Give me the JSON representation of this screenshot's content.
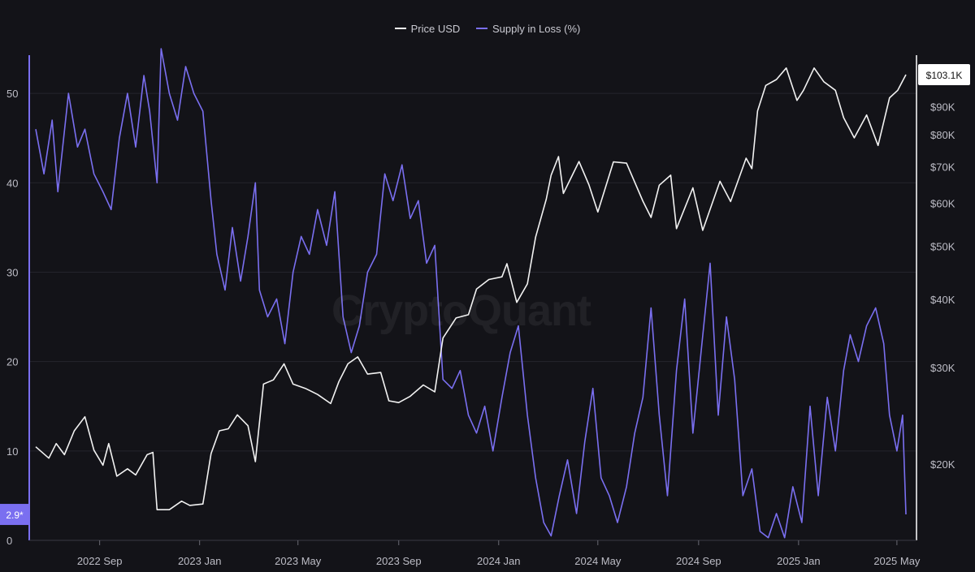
{
  "legend": [
    {
      "label": "Price USD",
      "color": "#ffffff"
    },
    {
      "label": "Supply in Loss (%)",
      "color": "#7a6ff0"
    }
  ],
  "watermark": "CryptoQuant",
  "colors": {
    "background": "#131318",
    "grid": "#24242c",
    "price": "#f2f2f2",
    "supply": "#7a6ff0",
    "price_badge_bg": "#ffffff",
    "price_badge_text": "#111111",
    "supply_badge_bg": "#7a6ff0",
    "supply_badge_text": "#ffffff"
  },
  "chart_data": {
    "type": "line",
    "x_range": [
      "2022-06-15",
      "2025-05-15"
    ],
    "x_ticks": [
      {
        "date": "2022-09-01",
        "label": "2022 Sep"
      },
      {
        "date": "2023-01-01",
        "label": "2023 Jan"
      },
      {
        "date": "2023-05-01",
        "label": "2023 May"
      },
      {
        "date": "2023-09-01",
        "label": "2023 Sep"
      },
      {
        "date": "2024-01-01",
        "label": "2024 Jan"
      },
      {
        "date": "2024-05-01",
        "label": "2024 May"
      },
      {
        "date": "2024-09-01",
        "label": "2024 Sep"
      },
      {
        "date": "2025-01-01",
        "label": "2025 Jan"
      },
      {
        "date": "2025-05-01",
        "label": "2025 May"
      }
    ],
    "left_axis": {
      "series": "Supply in Loss (%)",
      "ylim": [
        0,
        55
      ],
      "ticks": [
        0,
        10,
        20,
        30,
        40,
        50
      ]
    },
    "right_axis": {
      "series": "Price USD",
      "scale": "log",
      "ylim": [
        14500,
        115000
      ],
      "tick_values": [
        20000,
        30000,
        40000,
        50000,
        60000,
        70000,
        80000,
        90000
      ],
      "tick_labels": [
        "$20K",
        "$30K",
        "$40K",
        "$50K",
        "$60K",
        "$70K",
        "$80K",
        "$90K"
      ]
    },
    "current_price_label": "$103.1K",
    "current_supply_label": "2.9*",
    "series": [
      {
        "name": "Price USD",
        "axis": "right",
        "points": [
          [
            "2022-06-15",
            21500
          ],
          [
            "2022-07-01",
            20500
          ],
          [
            "2022-07-10",
            21800
          ],
          [
            "2022-07-20",
            20800
          ],
          [
            "2022-08-01",
            23000
          ],
          [
            "2022-08-14",
            24400
          ],
          [
            "2022-08-25",
            21200
          ],
          [
            "2022-09-05",
            19900
          ],
          [
            "2022-09-12",
            21800
          ],
          [
            "2022-09-22",
            19000
          ],
          [
            "2022-10-05",
            19600
          ],
          [
            "2022-10-15",
            19100
          ],
          [
            "2022-10-29",
            20800
          ],
          [
            "2022-11-05",
            21000
          ],
          [
            "2022-11-10",
            16500
          ],
          [
            "2022-11-25",
            16500
          ],
          [
            "2022-12-10",
            17100
          ],
          [
            "2022-12-20",
            16800
          ],
          [
            "2023-01-05",
            16900
          ],
          [
            "2023-01-15",
            20900
          ],
          [
            "2023-01-25",
            23000
          ],
          [
            "2023-02-05",
            23200
          ],
          [
            "2023-02-16",
            24600
          ],
          [
            "2023-03-01",
            23500
          ],
          [
            "2023-03-10",
            20200
          ],
          [
            "2023-03-20",
            28000
          ],
          [
            "2023-04-01",
            28500
          ],
          [
            "2023-04-14",
            30500
          ],
          [
            "2023-04-25",
            28000
          ],
          [
            "2023-05-10",
            27500
          ],
          [
            "2023-05-25",
            26800
          ],
          [
            "2023-06-10",
            25800
          ],
          [
            "2023-06-20",
            28300
          ],
          [
            "2023-07-01",
            30500
          ],
          [
            "2023-07-13",
            31400
          ],
          [
            "2023-07-25",
            29200
          ],
          [
            "2023-08-10",
            29400
          ],
          [
            "2023-08-20",
            26100
          ],
          [
            "2023-09-01",
            25900
          ],
          [
            "2023-09-15",
            26600
          ],
          [
            "2023-10-01",
            27900
          ],
          [
            "2023-10-15",
            27100
          ],
          [
            "2023-10-25",
            34000
          ],
          [
            "2023-11-10",
            37000
          ],
          [
            "2023-11-25",
            37500
          ],
          [
            "2023-12-05",
            41800
          ],
          [
            "2023-12-20",
            43500
          ],
          [
            "2024-01-05",
            44000
          ],
          [
            "2024-01-11",
            46500
          ],
          [
            "2024-01-23",
            39500
          ],
          [
            "2024-02-05",
            42700
          ],
          [
            "2024-02-15",
            52000
          ],
          [
            "2024-02-28",
            61000
          ],
          [
            "2024-03-05",
            67500
          ],
          [
            "2024-03-14",
            73000
          ],
          [
            "2024-03-20",
            62500
          ],
          [
            "2024-04-08",
            71500
          ],
          [
            "2024-04-20",
            64900
          ],
          [
            "2024-05-01",
            57800
          ],
          [
            "2024-05-20",
            71400
          ],
          [
            "2024-06-05",
            71000
          ],
          [
            "2024-06-25",
            60500
          ],
          [
            "2024-07-05",
            56500
          ],
          [
            "2024-07-15",
            64700
          ],
          [
            "2024-07-29",
            67500
          ],
          [
            "2024-08-05",
            53900
          ],
          [
            "2024-08-25",
            64000
          ],
          [
            "2024-09-06",
            53500
          ],
          [
            "2024-09-27",
            65800
          ],
          [
            "2024-10-10",
            60400
          ],
          [
            "2024-10-29",
            72500
          ],
          [
            "2024-11-05",
            69400
          ],
          [
            "2024-11-12",
            88500
          ],
          [
            "2024-11-22",
            98500
          ],
          [
            "2024-12-05",
            101000
          ],
          [
            "2024-12-17",
            106000
          ],
          [
            "2024-12-30",
            92500
          ],
          [
            "2025-01-07",
            96500
          ],
          [
            "2025-01-20",
            106000
          ],
          [
            "2025-02-01",
            100000
          ],
          [
            "2025-02-15",
            96500
          ],
          [
            "2025-02-25",
            86000
          ],
          [
            "2025-03-10",
            79000
          ],
          [
            "2025-03-25",
            87000
          ],
          [
            "2025-04-08",
            76500
          ],
          [
            "2025-04-22",
            93500
          ],
          [
            "2025-05-02",
            96500
          ],
          [
            "2025-05-12",
            103100
          ]
        ]
      },
      {
        "name": "Supply in Loss (%)",
        "axis": "left",
        "points": [
          [
            "2022-06-15",
            46
          ],
          [
            "2022-06-25",
            41
          ],
          [
            "2022-07-05",
            47
          ],
          [
            "2022-07-12",
            39
          ],
          [
            "2022-07-25",
            50
          ],
          [
            "2022-08-05",
            44
          ],
          [
            "2022-08-14",
            46
          ],
          [
            "2022-08-25",
            41
          ],
          [
            "2022-09-05",
            39
          ],
          [
            "2022-09-15",
            37
          ],
          [
            "2022-09-25",
            45
          ],
          [
            "2022-10-05",
            50
          ],
          [
            "2022-10-15",
            44
          ],
          [
            "2022-10-25",
            52
          ],
          [
            "2022-11-01",
            48
          ],
          [
            "2022-11-10",
            40
          ],
          [
            "2022-11-15",
            55
          ],
          [
            "2022-11-25",
            50
          ],
          [
            "2022-12-05",
            47
          ],
          [
            "2022-12-15",
            53
          ],
          [
            "2022-12-25",
            50
          ],
          [
            "2023-01-05",
            48
          ],
          [
            "2023-01-15",
            38
          ],
          [
            "2023-01-22",
            32
          ],
          [
            "2023-02-01",
            28
          ],
          [
            "2023-02-10",
            35
          ],
          [
            "2023-02-20",
            29
          ],
          [
            "2023-03-01",
            34
          ],
          [
            "2023-03-10",
            40
          ],
          [
            "2023-03-15",
            28
          ],
          [
            "2023-03-25",
            25
          ],
          [
            "2023-04-05",
            27
          ],
          [
            "2023-04-15",
            22
          ],
          [
            "2023-04-25",
            30
          ],
          [
            "2023-05-05",
            34
          ],
          [
            "2023-05-15",
            32
          ],
          [
            "2023-05-25",
            37
          ],
          [
            "2023-06-05",
            33
          ],
          [
            "2023-06-15",
            39
          ],
          [
            "2023-06-25",
            25
          ],
          [
            "2023-07-05",
            21
          ],
          [
            "2023-07-15",
            24
          ],
          [
            "2023-07-25",
            30
          ],
          [
            "2023-08-05",
            32
          ],
          [
            "2023-08-15",
            41
          ],
          [
            "2023-08-25",
            38
          ],
          [
            "2023-09-05",
            42
          ],
          [
            "2023-09-15",
            36
          ],
          [
            "2023-09-25",
            38
          ],
          [
            "2023-10-05",
            31
          ],
          [
            "2023-10-15",
            33
          ],
          [
            "2023-10-25",
            18
          ],
          [
            "2023-11-05",
            17
          ],
          [
            "2023-11-15",
            19
          ],
          [
            "2023-11-25",
            14
          ],
          [
            "2023-12-05",
            12
          ],
          [
            "2023-12-15",
            15
          ],
          [
            "2023-12-25",
            10
          ],
          [
            "2024-01-05",
            16
          ],
          [
            "2024-01-15",
            21
          ],
          [
            "2024-01-25",
            24
          ],
          [
            "2024-02-05",
            14
          ],
          [
            "2024-02-15",
            7
          ],
          [
            "2024-02-25",
            2
          ],
          [
            "2024-03-05",
            0.5
          ],
          [
            "2024-03-15",
            5
          ],
          [
            "2024-03-25",
            9
          ],
          [
            "2024-04-05",
            3
          ],
          [
            "2024-04-15",
            11
          ],
          [
            "2024-04-25",
            17
          ],
          [
            "2024-05-05",
            7
          ],
          [
            "2024-05-15",
            5
          ],
          [
            "2024-05-25",
            2
          ],
          [
            "2024-06-05",
            6
          ],
          [
            "2024-06-15",
            12
          ],
          [
            "2024-06-25",
            16
          ],
          [
            "2024-07-05",
            26
          ],
          [
            "2024-07-15",
            14
          ],
          [
            "2024-07-25",
            5
          ],
          [
            "2024-08-05",
            19
          ],
          [
            "2024-08-15",
            27
          ],
          [
            "2024-08-25",
            12
          ],
          [
            "2024-09-05",
            22
          ],
          [
            "2024-09-15",
            31
          ],
          [
            "2024-09-25",
            14
          ],
          [
            "2024-10-05",
            25
          ],
          [
            "2024-10-15",
            18
          ],
          [
            "2024-10-25",
            5
          ],
          [
            "2024-11-05",
            8
          ],
          [
            "2024-11-15",
            1
          ],
          [
            "2024-11-25",
            0.3
          ],
          [
            "2024-12-05",
            3
          ],
          [
            "2024-12-15",
            0.3
          ],
          [
            "2024-12-25",
            6
          ],
          [
            "2025-01-05",
            2
          ],
          [
            "2025-01-15",
            15
          ],
          [
            "2025-01-25",
            5
          ],
          [
            "2025-02-05",
            16
          ],
          [
            "2025-02-15",
            10
          ],
          [
            "2025-02-25",
            19
          ],
          [
            "2025-03-05",
            23
          ],
          [
            "2025-03-15",
            20
          ],
          [
            "2025-03-25",
            24
          ],
          [
            "2025-04-05",
            26
          ],
          [
            "2025-04-15",
            22
          ],
          [
            "2025-04-22",
            14
          ],
          [
            "2025-05-01",
            10
          ],
          [
            "2025-05-08",
            14
          ],
          [
            "2025-05-12",
            2.9
          ]
        ]
      }
    ]
  }
}
